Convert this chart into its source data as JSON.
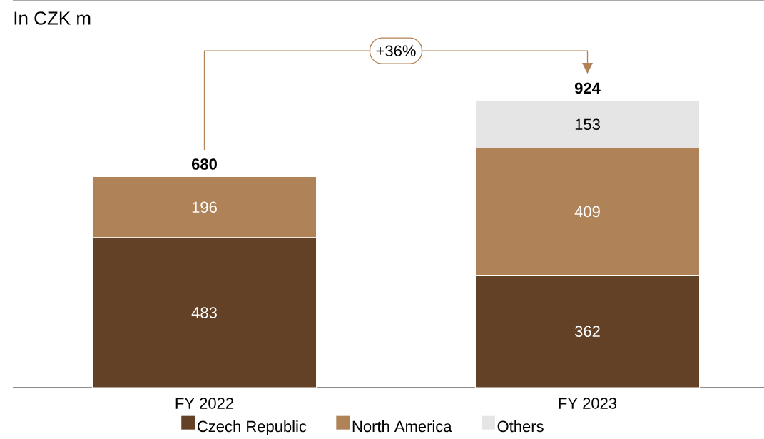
{
  "chart_data": {
    "type": "bar",
    "stacked": true,
    "title": "In CZK m",
    "categories": [
      "FY 2022",
      "FY 2023"
    ],
    "series": [
      {
        "name": "Czech Republic",
        "color": "#634126",
        "values": [
          483,
          362
        ]
      },
      {
        "name": "North America",
        "color": "#b08257",
        "values": [
          196,
          409
        ]
      },
      {
        "name": "Others",
        "color": "#e5e5e5",
        "values": [
          null,
          153
        ]
      }
    ],
    "tick_labels": "x",
    "data_labels": true,
    "totals": [
      "680",
      "924"
    ],
    "annotations": [
      "+36%"
    ],
    "legend": "bottom"
  }
}
